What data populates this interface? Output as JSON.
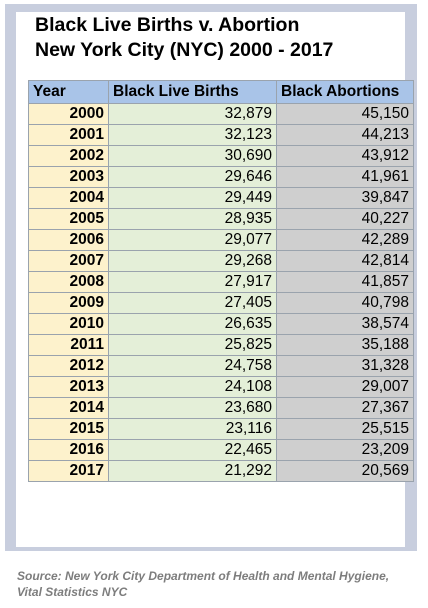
{
  "title_line1": "Black Live Births v. Abortion",
  "title_line2": "New York City (NYC) 2000 - 2017",
  "source": "Source: New York City Department of Health and Mental Hygiene, Vital Statistics NYC",
  "colors": {
    "frame": "#c8cede",
    "header": "#a9c4e8",
    "year_col": "#fdf2cc",
    "births_col": "#e4efd8",
    "abortions_col": "#cfcfcf"
  },
  "chart_data": {
    "type": "table",
    "columns": [
      "Year",
      "Black Live Births",
      "Black Abortions"
    ],
    "rows": [
      [
        "2000",
        "32,879",
        "45,150"
      ],
      [
        "2001",
        "32,123",
        "44,213"
      ],
      [
        "2002",
        "30,690",
        "43,912"
      ],
      [
        "2003",
        "29,646",
        "41,961"
      ],
      [
        "2004",
        "29,449",
        "39,847"
      ],
      [
        "2005",
        "28,935",
        "40,227"
      ],
      [
        "2006",
        "29,077",
        "42,289"
      ],
      [
        "2007",
        "29,268",
        "42,814"
      ],
      [
        "2008",
        "27,917",
        "41,857"
      ],
      [
        "2009",
        "27,405",
        "40,798"
      ],
      [
        "2010",
        "26,635",
        "38,574"
      ],
      [
        "2011",
        "25,825",
        "35,188"
      ],
      [
        "2012",
        "24,758",
        "31,328"
      ],
      [
        "2013",
        "24,108",
        "29,007"
      ],
      [
        "2014",
        "23,680",
        "27,367"
      ],
      [
        "2015",
        "23,116",
        "25,515"
      ],
      [
        "2016",
        "22,465",
        "23,209"
      ],
      [
        "2017",
        "21,292",
        "20,569"
      ]
    ]
  }
}
